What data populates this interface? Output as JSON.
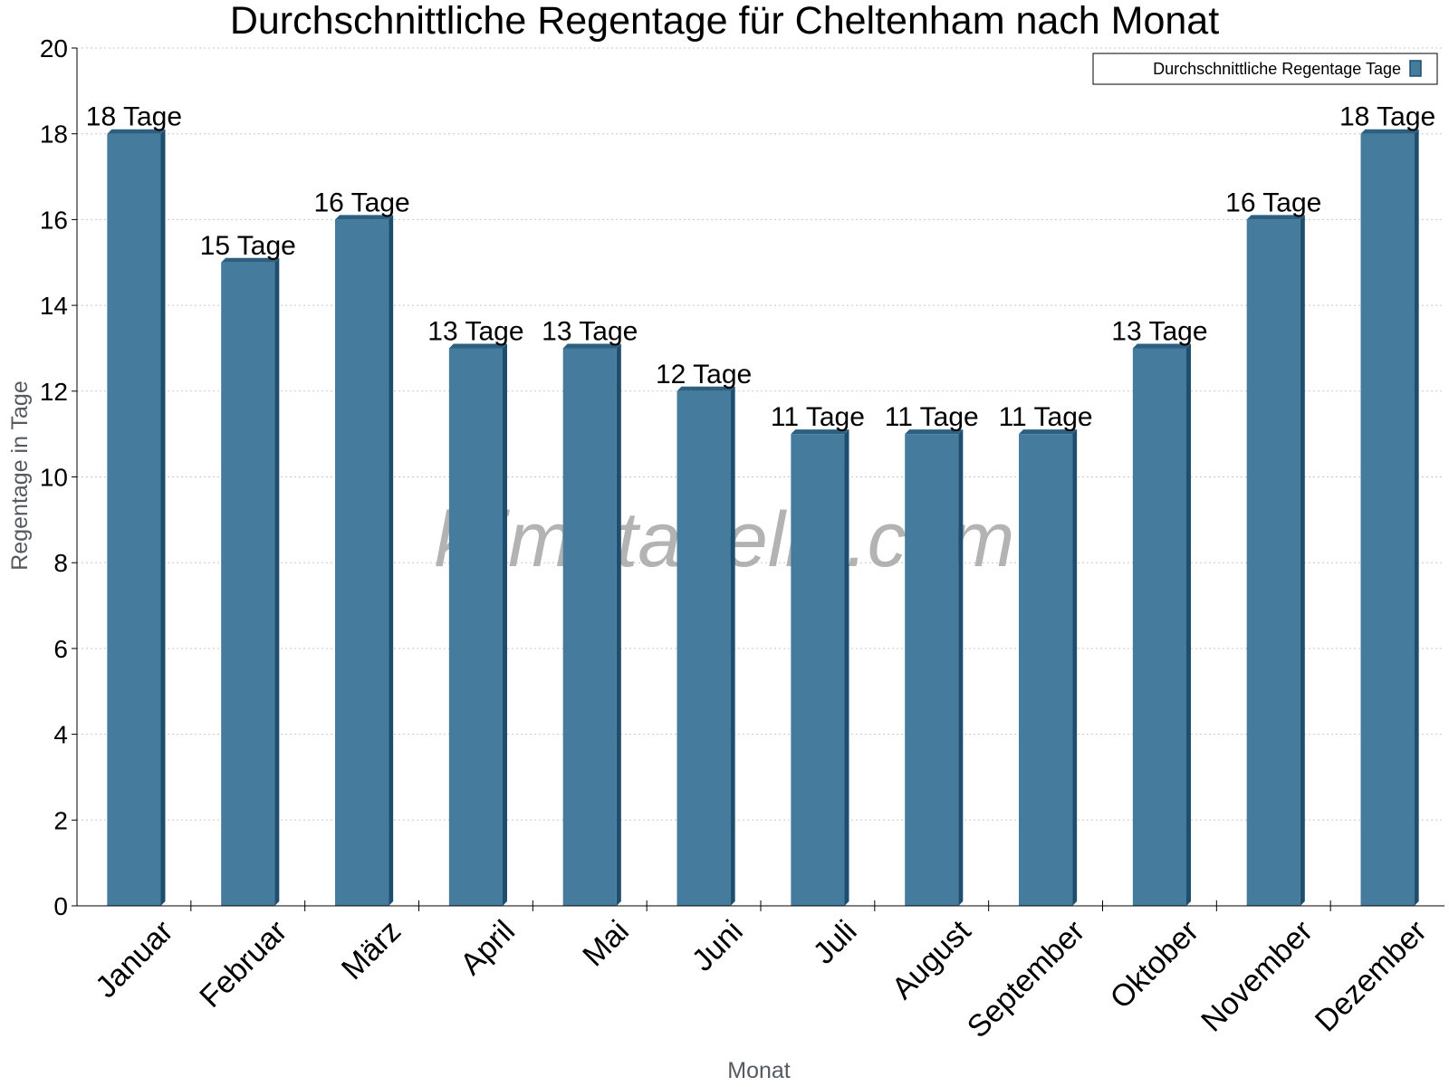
{
  "chart_data": {
    "type": "bar",
    "title": "Durchschnittliche Regentage für Cheltenham nach Monat",
    "xlabel": "Monat",
    "ylabel": "Regentage in Tage",
    "categories": [
      "Januar",
      "Februar",
      "März",
      "April",
      "Mai",
      "Juni",
      "Juli",
      "August",
      "September",
      "Oktober",
      "November",
      "Dezember"
    ],
    "series": [
      {
        "name": "Durchschnittliche Regentage Tage",
        "values": [
          18,
          15,
          16,
          13,
          13,
          12,
          11,
          11,
          11,
          13,
          16,
          18
        ],
        "labels": [
          "18 Tage",
          "15 Tage",
          "16 Tage",
          "13 Tage",
          "13 Tage",
          "12 Tage",
          "11 Tage",
          "11 Tage",
          "11 Tage",
          "13 Tage",
          "16 Tage",
          "18 Tage"
        ]
      }
    ],
    "ylim": [
      0,
      20
    ],
    "yticks": [
      0,
      2,
      4,
      6,
      8,
      10,
      12,
      14,
      16,
      18,
      20
    ],
    "grid": true,
    "legend_position": "top-right",
    "colors": {
      "bar_front": "#457b9d",
      "bar_side": "#1d4e6e",
      "bar_top": "#2c5f80"
    }
  },
  "watermark": "klimatabelle.com"
}
